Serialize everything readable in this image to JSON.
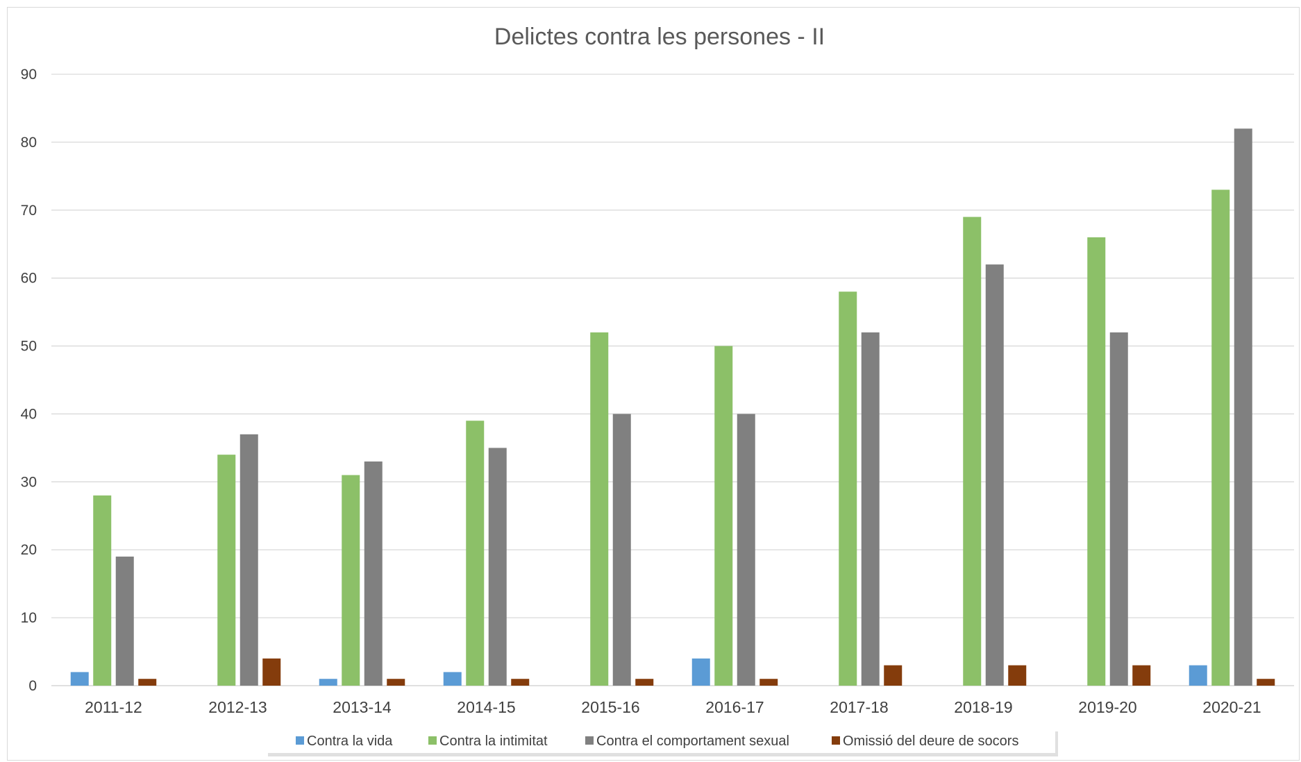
{
  "chart_data": {
    "type": "bar",
    "title": "Delictes contra les persones - II",
    "xlabel": "",
    "ylabel": "",
    "ylim": [
      0,
      90
    ],
    "yticks": [
      0,
      10,
      20,
      30,
      40,
      50,
      60,
      70,
      80,
      90
    ],
    "grid": true,
    "legend_position": "bottom",
    "categories": [
      "2011-12",
      "2012-13",
      "2013-14",
      "2014-15",
      "2015-16",
      "2016-17",
      "2017-18",
      "2018-19",
      "2019-20",
      "2020-21"
    ],
    "series": [
      {
        "name": "Contra la vida",
        "color": "#5b9bd5",
        "values": [
          2,
          0,
          1,
          2,
          0,
          4,
          0,
          0,
          0,
          3
        ]
      },
      {
        "name": "Contra la intimitat",
        "color": "#8cc068",
        "values": [
          28,
          34,
          31,
          39,
          52,
          50,
          58,
          69,
          66,
          73
        ]
      },
      {
        "name": "Contra el comportament sexual",
        "color": "#808080",
        "values": [
          19,
          37,
          33,
          35,
          40,
          40,
          52,
          62,
          52,
          82
        ]
      },
      {
        "name": "Omissió del deure de socors",
        "color": "#843c0c",
        "values": [
          1,
          4,
          1,
          1,
          1,
          1,
          3,
          3,
          3,
          1
        ]
      }
    ]
  }
}
